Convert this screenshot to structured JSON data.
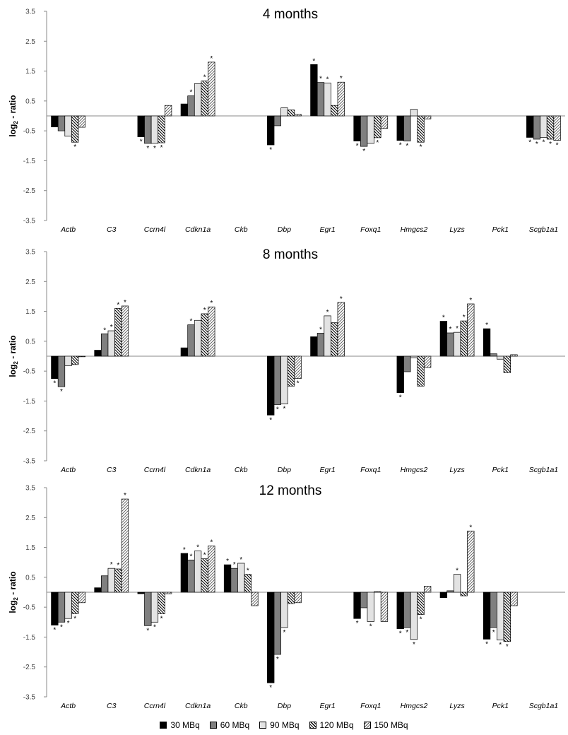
{
  "series_styles": [
    {
      "fill": "#000000",
      "pattern": "solid"
    },
    {
      "fill": "#808080",
      "pattern": "solid"
    },
    {
      "fill": "#e3e3e3",
      "pattern": "solid"
    },
    {
      "fill": "#ffffff",
      "pattern": "hatch-diag-down"
    },
    {
      "fill": "#ffffff",
      "pattern": "hatch-diag-up"
    }
  ],
  "legend": [
    "30 MBq",
    "60 MBq",
    "90 MBq",
    "120 MBq",
    "150 MBq"
  ],
  "chart_data": [
    {
      "type": "bar",
      "title": "4 months",
      "ylabel": "log2 - ratio",
      "ylim": [
        -3.5,
        3.5
      ],
      "yticks": [
        -3.5,
        -2.5,
        -1.5,
        -0.5,
        0.5,
        1.5,
        2.5,
        3.5
      ],
      "categories": [
        "Actb",
        "C3",
        "Ccrn4l",
        "Cdkn1a",
        "Ckb",
        "Dbp",
        "Egr1",
        "Foxq1",
        "Hmgcs2",
        "Lyzs",
        "Pck1",
        "Scgb1a1"
      ],
      "series": [
        {
          "name": "30 MBq",
          "values": [
            -0.37,
            null,
            -0.7,
            0.4,
            null,
            -0.97,
            1.72,
            -0.84,
            -0.82,
            null,
            null,
            -0.72
          ],
          "significant": [
            false,
            false,
            true,
            false,
            false,
            true,
            true,
            true,
            true,
            false,
            false,
            true
          ]
        },
        {
          "name": "60 MBq",
          "values": [
            -0.5,
            null,
            -0.92,
            0.67,
            null,
            -0.33,
            1.12,
            -1.02,
            -0.84,
            null,
            null,
            -0.78
          ],
          "significant": [
            false,
            false,
            true,
            true,
            false,
            false,
            true,
            true,
            true,
            false,
            false,
            true
          ]
        },
        {
          "name": "90 MBq",
          "values": [
            -0.68,
            null,
            -0.92,
            1.08,
            null,
            0.27,
            1.1,
            -0.92,
            0.22,
            null,
            null,
            -0.72
          ],
          "significant": [
            false,
            false,
            true,
            false,
            false,
            false,
            true,
            false,
            false,
            false,
            false,
            true
          ]
        },
        {
          "name": "120 MBq",
          "values": [
            -0.88,
            null,
            -0.9,
            1.17,
            null,
            0.2,
            0.35,
            -0.73,
            -0.88,
            null,
            null,
            -0.78
          ],
          "significant": [
            true,
            false,
            true,
            true,
            false,
            false,
            false,
            true,
            true,
            false,
            false,
            true
          ]
        },
        {
          "name": "150 MBq",
          "values": [
            -0.38,
            null,
            0.35,
            1.8,
            null,
            0.05,
            1.13,
            -0.42,
            -0.1,
            null,
            null,
            -0.82
          ],
          "significant": [
            false,
            false,
            false,
            true,
            false,
            false,
            true,
            false,
            false,
            false,
            false,
            true
          ]
        }
      ]
    },
    {
      "type": "bar",
      "title": "8 months",
      "ylabel": "log2 - ratio",
      "ylim": [
        -3.5,
        3.5
      ],
      "yticks": [
        -3.5,
        -2.5,
        -1.5,
        -0.5,
        0.5,
        1.5,
        2.5,
        3.5
      ],
      "categories": [
        "Actb",
        "C3",
        "Ccrn4l",
        "Cdkn1a",
        "Ckb",
        "Dbp",
        "Egr1",
        "Foxq1",
        "Hmgcs2",
        "Lyzs",
        "Pck1",
        "Scgb1a1"
      ],
      "series": [
        {
          "name": "30 MBq",
          "values": [
            -0.75,
            0.2,
            null,
            0.28,
            null,
            -1.97,
            0.65,
            null,
            -1.22,
            1.17,
            0.92,
            null
          ],
          "significant": [
            true,
            false,
            false,
            false,
            false,
            true,
            false,
            false,
            true,
            true,
            true,
            false
          ]
        },
        {
          "name": "60 MBq",
          "values": [
            -1.02,
            0.75,
            null,
            1.05,
            null,
            -1.62,
            0.77,
            null,
            -0.52,
            0.78,
            0.08,
            null
          ],
          "significant": [
            true,
            true,
            false,
            true,
            false,
            true,
            true,
            false,
            false,
            true,
            false,
            false
          ]
        },
        {
          "name": "90 MBq",
          "values": [
            -0.32,
            0.85,
            null,
            1.2,
            null,
            -1.6,
            1.35,
            null,
            -0.05,
            0.8,
            -0.1,
            null
          ],
          "significant": [
            false,
            true,
            false,
            false,
            false,
            true,
            true,
            false,
            false,
            true,
            false,
            false
          ]
        },
        {
          "name": "120 MBq",
          "values": [
            -0.28,
            1.6,
            null,
            1.42,
            null,
            -1.0,
            1.12,
            null,
            -1.0,
            1.18,
            -0.55,
            null
          ],
          "significant": [
            false,
            true,
            false,
            true,
            false,
            false,
            false,
            false,
            false,
            true,
            false,
            false
          ]
        },
        {
          "name": "150 MBq",
          "values": [
            -0.02,
            1.68,
            null,
            1.65,
            null,
            -0.75,
            1.8,
            null,
            -0.38,
            1.75,
            0.05,
            null
          ],
          "significant": [
            false,
            true,
            false,
            true,
            false,
            true,
            true,
            false,
            false,
            true,
            false,
            false
          ]
        }
      ]
    },
    {
      "type": "bar",
      "title": "12 months",
      "ylabel": "log2 - ratio",
      "ylim": [
        -3.5,
        3.5
      ],
      "yticks": [
        -3.5,
        -2.5,
        -1.5,
        -0.5,
        0.5,
        1.5,
        2.5,
        3.5
      ],
      "categories": [
        "Actb",
        "C3",
        "Ccrn4l",
        "Cdkn1a",
        "Ckb",
        "Dbp",
        "Egr1",
        "Foxq1",
        "Hmgcs2",
        "Lyzs",
        "Pck1",
        "Scgb1a1"
      ],
      "series": [
        {
          "name": "30 MBq",
          "values": [
            -1.1,
            0.15,
            -0.05,
            1.3,
            0.92,
            -3.03,
            null,
            -0.88,
            -1.22,
            -0.18,
            -1.57,
            null
          ],
          "significant": [
            true,
            false,
            false,
            true,
            true,
            true,
            false,
            true,
            true,
            false,
            true,
            false
          ]
        },
        {
          "name": "60 MBq",
          "values": [
            -1.0,
            0.55,
            -1.12,
            1.08,
            0.8,
            -2.08,
            null,
            -0.52,
            -1.18,
            0.05,
            -1.18,
            null
          ],
          "significant": [
            true,
            false,
            true,
            true,
            true,
            true,
            false,
            false,
            true,
            false,
            true,
            false
          ]
        },
        {
          "name": "90 MBq",
          "values": [
            -0.88,
            0.8,
            -1.0,
            1.38,
            0.97,
            -1.18,
            null,
            -0.98,
            -1.58,
            0.6,
            -1.6,
            null
          ],
          "significant": [
            true,
            true,
            true,
            true,
            true,
            true,
            false,
            true,
            true,
            true,
            true,
            false
          ]
        },
        {
          "name": "120 MBq",
          "values": [
            -0.72,
            0.78,
            -0.72,
            1.12,
            0.6,
            -0.38,
            null,
            0.02,
            -0.75,
            -0.12,
            -1.65,
            null
          ],
          "significant": [
            true,
            true,
            true,
            true,
            true,
            false,
            false,
            false,
            true,
            false,
            true,
            false
          ]
        },
        {
          "name": "150 MBq",
          "values": [
            -0.35,
            3.12,
            -0.05,
            1.55,
            -0.45,
            -0.35,
            null,
            -0.98,
            0.2,
            2.05,
            -0.45,
            null
          ],
          "significant": [
            false,
            true,
            false,
            true,
            false,
            false,
            false,
            false,
            false,
            true,
            false,
            false
          ]
        }
      ]
    }
  ]
}
